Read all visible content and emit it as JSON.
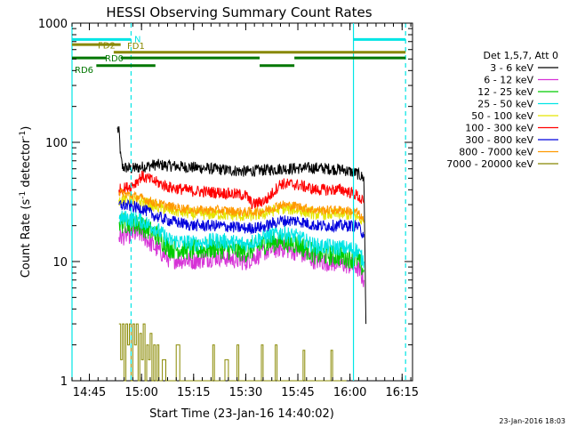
{
  "chart_data": {
    "type": "line",
    "title": "HESSI Observing Summary Count Rates",
    "xlabel": "Start Time (23-Jan-16 14:40:02)",
    "ylabel_main": "Count Rate (s",
    "ylabel_sup1": "-1",
    "ylabel_mid": " detector",
    "ylabel_sup2": "-1",
    "ylabel_end": ")",
    "x_unit": "minutes since 14:40:02",
    "xlim": [
      0,
      98
    ],
    "ylim": [
      1,
      1000
    ],
    "yscale": "log",
    "grid": false,
    "x_ticks": [
      {
        "label": "14:45",
        "x": 5
      },
      {
        "label": "15:00",
        "x": 20
      },
      {
        "label": "15:15",
        "x": 35
      },
      {
        "label": "15:30",
        "x": 50
      },
      {
        "label": "15:45",
        "x": 65
      },
      {
        "label": "16:00",
        "x": 80
      },
      {
        "label": "16:15",
        "x": 95
      }
    ],
    "y_ticks": [
      {
        "label": "1",
        "y": 1
      },
      {
        "label": "10",
        "y": 10
      },
      {
        "label": "100",
        "y": 100
      },
      {
        "label": "1000",
        "y": 1000
      }
    ],
    "legend_placement": "right",
    "legend_header": "Det 1,5,7, Att 0",
    "series": [
      {
        "name": "3 - 6 keV",
        "color": "#000000",
        "noise": 0.05,
        "points": [
          [
            13,
            130
          ],
          [
            13.6,
            120
          ],
          [
            14,
            75
          ],
          [
            14.5,
            62
          ],
          [
            17,
            60
          ],
          [
            20,
            62
          ],
          [
            24,
            65
          ],
          [
            30,
            63
          ],
          [
            40,
            60
          ],
          [
            50,
            57
          ],
          [
            60,
            60
          ],
          [
            70,
            61
          ],
          [
            78,
            59
          ],
          [
            82,
            55
          ],
          [
            84,
            50
          ],
          [
            84.6,
            3
          ]
        ]
      },
      {
        "name": "6 - 12 keV",
        "color": "#d633d6",
        "noise": 0.08,
        "points": [
          [
            13.5,
            16
          ],
          [
            17,
            17
          ],
          [
            20,
            17
          ],
          [
            24,
            13
          ],
          [
            28,
            10.5
          ],
          [
            35,
            10.2
          ],
          [
            42,
            11
          ],
          [
            50,
            10
          ],
          [
            55,
            12
          ],
          [
            60,
            13
          ],
          [
            65,
            12
          ],
          [
            70,
            10.2
          ],
          [
            78,
            9.5
          ],
          [
            82,
            9
          ],
          [
            84,
            7
          ]
        ]
      },
      {
        "name": "12 - 25 keV",
        "color": "#00cc00",
        "noise": 0.09,
        "points": [
          [
            13.5,
            21
          ],
          [
            17,
            21
          ],
          [
            20,
            20
          ],
          [
            24,
            17
          ],
          [
            28,
            13
          ],
          [
            35,
            12.5
          ],
          [
            42,
            13
          ],
          [
            50,
            12
          ],
          [
            55,
            14
          ],
          [
            60,
            15
          ],
          [
            65,
            14
          ],
          [
            70,
            11.5
          ],
          [
            78,
            11
          ],
          [
            82,
            10.5
          ],
          [
            84,
            8.5
          ]
        ]
      },
      {
        "name": "25 - 50 keV",
        "color": "#00e5e5",
        "noise": 0.07,
        "points": [
          [
            13.5,
            23
          ],
          [
            17,
            23
          ],
          [
            20,
            22
          ],
          [
            24,
            19
          ],
          [
            28,
            15
          ],
          [
            35,
            14.2
          ],
          [
            42,
            15
          ],
          [
            50,
            14
          ],
          [
            55,
            16
          ],
          [
            60,
            17.5
          ],
          [
            65,
            16
          ],
          [
            70,
            13.5
          ],
          [
            78,
            13
          ],
          [
            82,
            12.5
          ],
          [
            84,
            10
          ]
        ]
      },
      {
        "name": "50 - 100 keV",
        "color": "#e5e500",
        "noise": 0.05,
        "points": [
          [
            13.5,
            33
          ],
          [
            17,
            33
          ],
          [
            20,
            32
          ],
          [
            24,
            29
          ],
          [
            28,
            27
          ],
          [
            35,
            25
          ],
          [
            42,
            25
          ],
          [
            50,
            24
          ],
          [
            55,
            25
          ],
          [
            60,
            28
          ],
          [
            65,
            27
          ],
          [
            70,
            25
          ],
          [
            78,
            25
          ],
          [
            82,
            24
          ],
          [
            84,
            21
          ]
        ]
      },
      {
        "name": "100 - 300 keV",
        "color": "#ff0000",
        "noise": 0.05,
        "points": [
          [
            13.5,
            40
          ],
          [
            16,
            42
          ],
          [
            18,
            45
          ],
          [
            20,
            52
          ],
          [
            23,
            48
          ],
          [
            28,
            42
          ],
          [
            35,
            39
          ],
          [
            42,
            38
          ],
          [
            50,
            36
          ],
          [
            52,
            30
          ],
          [
            56,
            33
          ],
          [
            60,
            45
          ],
          [
            65,
            44
          ],
          [
            70,
            40
          ],
          [
            78,
            40
          ],
          [
            82,
            36
          ],
          [
            84,
            31
          ]
        ]
      },
      {
        "name": "300 - 800 keV",
        "color": "#0000dd",
        "noise": 0.05,
        "points": [
          [
            13.5,
            30
          ],
          [
            17,
            29
          ],
          [
            20,
            28
          ],
          [
            24,
            24
          ],
          [
            28,
            22
          ],
          [
            35,
            20
          ],
          [
            42,
            20
          ],
          [
            50,
            19
          ],
          [
            55,
            19.5
          ],
          [
            60,
            22
          ],
          [
            65,
            22
          ],
          [
            70,
            20
          ],
          [
            78,
            20
          ],
          [
            82,
            20
          ],
          [
            84,
            17
          ]
        ]
      },
      {
        "name": "800 - 7000 keV",
        "color": "#ff9900",
        "noise": 0.04,
        "points": [
          [
            13.5,
            38
          ],
          [
            17,
            36
          ],
          [
            20,
            34
          ],
          [
            24,
            31
          ],
          [
            28,
            29
          ],
          [
            35,
            27
          ],
          [
            42,
            27
          ],
          [
            50,
            26
          ],
          [
            55,
            26.5
          ],
          [
            60,
            30
          ],
          [
            65,
            29
          ],
          [
            70,
            27
          ],
          [
            78,
            27
          ],
          [
            82,
            26
          ],
          [
            84,
            22
          ]
        ]
      },
      {
        "name": "7000 - 20000 keV",
        "color": "#888800",
        "noise": 0,
        "points": [
          [
            13.5,
            3
          ],
          [
            14,
            1.5
          ],
          [
            14.5,
            3
          ],
          [
            15,
            1
          ],
          [
            15.5,
            3
          ],
          [
            16,
            2
          ],
          [
            16.5,
            3
          ],
          [
            17,
            1
          ],
          [
            17.5,
            3
          ],
          [
            18,
            2
          ],
          [
            18.5,
            3
          ],
          [
            19,
            1
          ],
          [
            19.5,
            2.5
          ],
          [
            20,
            1.5
          ],
          [
            20.5,
            3
          ],
          [
            21,
            1
          ],
          [
            21.5,
            2
          ],
          [
            22,
            1.5
          ],
          [
            22.5,
            2.5
          ],
          [
            23,
            1
          ],
          [
            23.5,
            2
          ],
          [
            24,
            1
          ],
          [
            24.5,
            2
          ],
          [
            25,
            1
          ],
          [
            26,
            1.5
          ],
          [
            27,
            1
          ],
          [
            29,
            1
          ],
          [
            30,
            2
          ],
          [
            31,
            1
          ],
          [
            40,
            1
          ],
          [
            40.5,
            2
          ],
          [
            41,
            1
          ],
          [
            43,
            1
          ],
          [
            44,
            1.5
          ],
          [
            45,
            1
          ],
          [
            47,
            1
          ],
          [
            47.5,
            2
          ],
          [
            48,
            1
          ],
          [
            54,
            1
          ],
          [
            54.5,
            2
          ],
          [
            55,
            1
          ],
          [
            58,
            1
          ],
          [
            58.5,
            2
          ],
          [
            59,
            1
          ],
          [
            66,
            1
          ],
          [
            66.5,
            1.8
          ],
          [
            67,
            1
          ],
          [
            74,
            1
          ],
          [
            74.5,
            1.8
          ],
          [
            75,
            1
          ],
          [
            79,
            1
          ]
        ]
      }
    ],
    "bars": [
      {
        "label": "N",
        "color": "#00e5e5",
        "segments": [
          [
            0,
            17
          ],
          [
            81,
            96
          ]
        ],
        "y": 730
      },
      {
        "label": "FD1",
        "color": "#888800",
        "segments": [
          [
            0,
            14
          ]
        ],
        "y": 660
      },
      {
        "label": "FD2",
        "color": "#888800",
        "segments": [
          [
            12,
            96
          ]
        ],
        "y": 570
      },
      {
        "label": "RD0",
        "color": "#007700",
        "segments": [
          [
            0,
            10
          ],
          [
            14,
            54
          ],
          [
            64,
            96
          ]
        ],
        "y": 510
      },
      {
        "label": "RD6",
        "color": "#007700",
        "segments": [
          [
            7,
            24
          ],
          [
            54,
            64
          ]
        ],
        "y": 440
      }
    ],
    "vertical_lines": [
      {
        "x": 0,
        "style": "solid",
        "color": "#00e5e5"
      },
      {
        "x": 17,
        "style": "dashed",
        "color": "#00e5e5"
      },
      {
        "x": 81,
        "style": "solid",
        "color": "#00e5e5"
      },
      {
        "x": 96,
        "style": "dashed",
        "color": "#00e5e5"
      }
    ]
  },
  "footer": {
    "timestamp": "23-Jan-2016 18:03"
  }
}
